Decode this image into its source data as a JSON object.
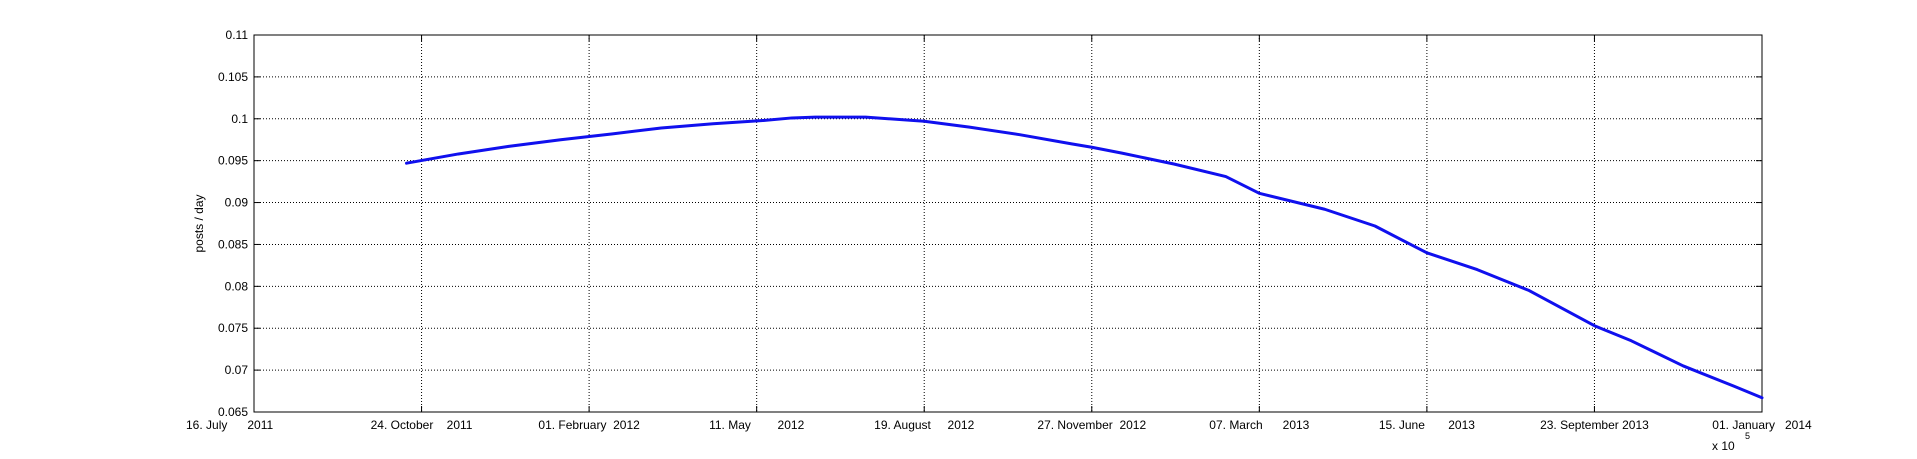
{
  "chart_data": {
    "type": "line",
    "title": "",
    "xlabel": "",
    "ylabel": "posts / day",
    "x_exponent_label": {
      "base": "x 10",
      "exponent": "5"
    },
    "x_axis_kind": "date",
    "xlim": [
      "2011-07-16",
      "2014-01-01"
    ],
    "ylim": [
      0.065,
      0.11
    ],
    "grid": true,
    "x_ticks": [
      {
        "date": "2011-07-16",
        "label": "16. July      2011"
      },
      {
        "date": "2011-10-24",
        "label": "24. October    2011"
      },
      {
        "date": "2012-02-01",
        "label": "01. February  2012"
      },
      {
        "date": "2012-05-11",
        "label": "11. May        2012"
      },
      {
        "date": "2012-08-19",
        "label": "19. August     2012"
      },
      {
        "date": "2012-11-27",
        "label": "27. November  2012"
      },
      {
        "date": "2013-03-07",
        "label": "07. March      2013"
      },
      {
        "date": "2013-06-15",
        "label": "15. June       2013"
      },
      {
        "date": "2013-09-23",
        "label": "23. September 2013"
      },
      {
        "date": "2014-01-01",
        "label": "01. January   2014"
      }
    ],
    "y_ticks": [
      {
        "value": 0.065,
        "label": "0.065"
      },
      {
        "value": 0.07,
        "label": "0.07"
      },
      {
        "value": 0.075,
        "label": "0.075"
      },
      {
        "value": 0.08,
        "label": "0.08"
      },
      {
        "value": 0.085,
        "label": "0.085"
      },
      {
        "value": 0.09,
        "label": "0.09"
      },
      {
        "value": 0.095,
        "label": "0.095"
      },
      {
        "value": 0.1,
        "label": "0.1"
      },
      {
        "value": 0.105,
        "label": "0.105"
      },
      {
        "value": 0.11,
        "label": "0.11"
      }
    ],
    "series": [
      {
        "color": "#1010ee",
        "points": [
          {
            "x": "2011-10-15",
            "y": 0.0947
          },
          {
            "x": "2011-11-15",
            "y": 0.0958
          },
          {
            "x": "2011-12-15",
            "y": 0.0967
          },
          {
            "x": "2012-01-15",
            "y": 0.0975
          },
          {
            "x": "2012-02-15",
            "y": 0.0982
          },
          {
            "x": "2012-03-15",
            "y": 0.0989
          },
          {
            "x": "2012-04-15",
            "y": 0.0994
          },
          {
            "x": "2012-05-15",
            "y": 0.0998
          },
          {
            "x": "2012-06-01",
            "y": 0.1001
          },
          {
            "x": "2012-06-15",
            "y": 0.1002
          },
          {
            "x": "2012-07-15",
            "y": 0.1002
          },
          {
            "x": "2012-08-19",
            "y": 0.0997
          },
          {
            "x": "2012-09-15",
            "y": 0.099
          },
          {
            "x": "2012-10-15",
            "y": 0.0981
          },
          {
            "x": "2012-11-15",
            "y": 0.097
          },
          {
            "x": "2012-11-27",
            "y": 0.0966
          },
          {
            "x": "2012-12-15",
            "y": 0.0959
          },
          {
            "x": "2013-01-15",
            "y": 0.0946
          },
          {
            "x": "2013-02-15",
            "y": 0.0931
          },
          {
            "x": "2013-03-07",
            "y": 0.0911
          },
          {
            "x": "2013-04-15",
            "y": 0.0892
          },
          {
            "x": "2013-05-15",
            "y": 0.0872
          },
          {
            "x": "2013-06-15",
            "y": 0.084
          },
          {
            "x": "2013-07-15",
            "y": 0.082
          },
          {
            "x": "2013-08-15",
            "y": 0.0795
          },
          {
            "x": "2013-09-23",
            "y": 0.0753
          },
          {
            "x": "2013-10-15",
            "y": 0.0735
          },
          {
            "x": "2013-11-15",
            "y": 0.0705
          },
          {
            "x": "2013-12-15",
            "y": 0.0681
          },
          {
            "x": "2014-01-01",
            "y": 0.0667
          }
        ]
      }
    ]
  }
}
